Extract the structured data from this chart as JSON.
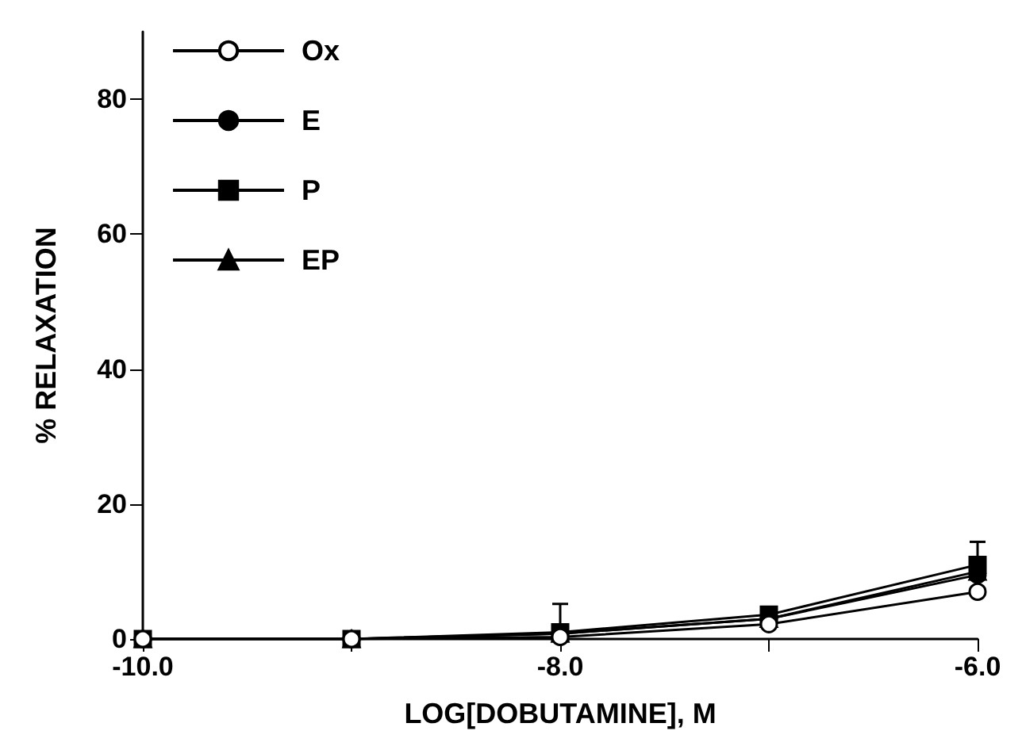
{
  "chart_data": {
    "type": "line",
    "xlabel": "LOG[DOBUTAMINE], M",
    "ylabel": "% RELAXATION",
    "x": [
      -10,
      -9,
      -8,
      -7,
      -6
    ],
    "series": [
      {
        "name": "Ox",
        "color": "#ffffff",
        "marker": "circle",
        "values": [
          0,
          0,
          0.3,
          2.2,
          7
        ]
      },
      {
        "name": "E",
        "color": "#000000",
        "marker": "circle",
        "values": [
          0,
          0,
          0.8,
          3,
          9.5
        ]
      },
      {
        "name": "P",
        "color": "#000000",
        "marker": "square",
        "values": [
          0,
          0,
          1,
          3.6,
          11
        ],
        "errors": [
          null,
          null,
          [
            1,
            5.2
          ],
          null,
          [
            11,
            14.4
          ]
        ]
      },
      {
        "name": "EP",
        "color": "#000000",
        "marker": "triangle",
        "values": [
          0,
          0,
          0.8,
          3,
          10
        ]
      }
    ],
    "xlim": [
      -10,
      -6
    ],
    "xticks": [
      {
        "value": -10,
        "label": "-10.0"
      },
      {
        "value": -9,
        "label": null
      },
      {
        "value": -8,
        "label": "-8.0"
      },
      {
        "value": -7,
        "label": null
      },
      {
        "value": -6,
        "label": "-6.0"
      }
    ],
    "ylim": [
      0,
      90
    ],
    "yticks": [
      0,
      20,
      40,
      60,
      80
    ],
    "grid": false,
    "legend": "top left",
    "line_style": "solid"
  }
}
